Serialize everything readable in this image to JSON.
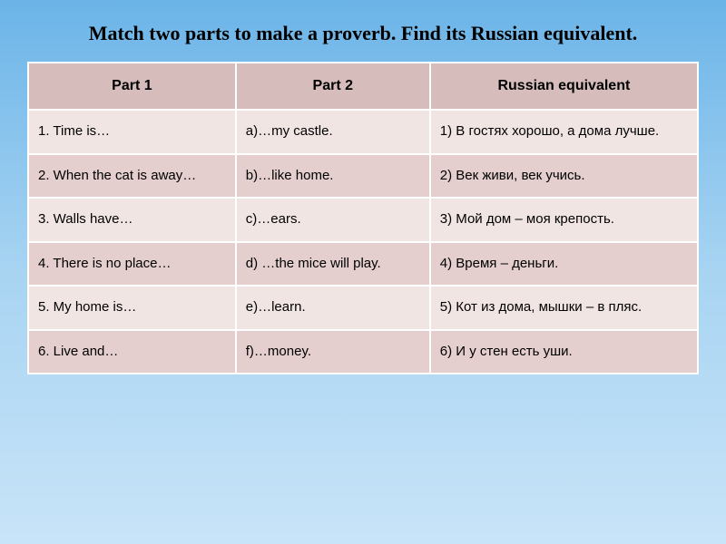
{
  "title": "Match two parts to make a proverb. Find its Russian equivalent.",
  "table": {
    "columns": [
      "Part 1",
      "Part 2",
      "Russian equivalent"
    ],
    "col_widths": [
      "31%",
      "29%",
      "40%"
    ],
    "header_bg": "#D6BDBC",
    "row_bg_odd": "#F1E5E4",
    "row_bg_even": "#E4CFCE",
    "border_color": "#ffffff",
    "header_fontsize": 16,
    "cell_fontsize": 15,
    "rows": [
      {
        "c1": "1. Time is…",
        "c2": "a)…my castle.",
        "c3": "1) В гостях хорошо, а дома лучше."
      },
      {
        "c1": "2. When the cat is away…",
        "c2": "b)…like home.",
        "c3": "2) Век живи, век учись."
      },
      {
        "c1": "3. Walls have…",
        "c2": "c)…ears.",
        "c3": "3) Мой дом – моя крепость."
      },
      {
        "c1": "4. There is no place…",
        "c2": "d) …the mice will play.",
        "c3": "4) Время – деньги."
      },
      {
        "c1": "5. My home is…",
        "c2": "e)…learn.",
        "c3": "5) Кот из дома, мышки – в пляс."
      },
      {
        "c1": "6. Live and…",
        "c2": "f)…money.",
        "c3": "6) И у стен есть уши."
      }
    ]
  },
  "title_style": {
    "font_family": "Times New Roman",
    "font_weight": "bold",
    "font_size": 22,
    "color": "#000000"
  },
  "background_gradient": {
    "top": "#6BB4E8",
    "mid": "#A8D4F2",
    "bottom": "#C8E4F8"
  }
}
